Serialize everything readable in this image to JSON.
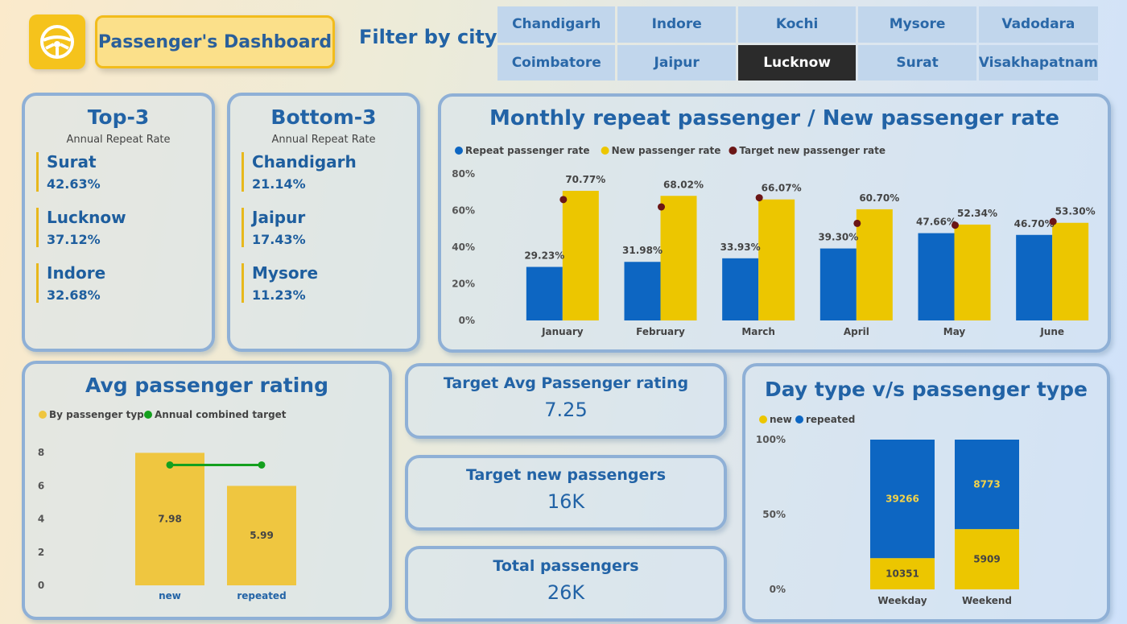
{
  "header": {
    "title": "Passenger's Dashboard",
    "filter_label": "Filter by city",
    "logo_icon": "steering-wheel-icon",
    "cities": [
      "Chandigarh",
      "Indore",
      "Kochi",
      "Mysore",
      "Vadodara",
      "Coimbatore",
      "Jaipur",
      "Lucknow",
      "Surat",
      "Visakhapatnam"
    ],
    "selected_city": "Lucknow"
  },
  "top3": {
    "title": "Top-3",
    "subtitle": "Annual Repeat Rate",
    "items": [
      {
        "city": "Surat",
        "value": "42.63%"
      },
      {
        "city": "Lucknow",
        "value": "37.12%"
      },
      {
        "city": "Indore",
        "value": "32.68%"
      }
    ]
  },
  "bottom3": {
    "title": "Bottom-3",
    "subtitle": "Annual Repeat Rate",
    "items": [
      {
        "city": "Chandigarh",
        "value": "21.14%"
      },
      {
        "city": "Jaipur",
        "value": "17.43%"
      },
      {
        "city": "Mysore",
        "value": "11.23%"
      }
    ]
  },
  "kpis": {
    "target_rating": {
      "label": "Target Avg Passenger rating",
      "value": "7.25"
    },
    "target_new": {
      "label": "Target new passengers",
      "value": "16K"
    },
    "total": {
      "label": "Total passengers",
      "value": "26K"
    }
  },
  "colors": {
    "blue": "#0d66c2",
    "yellow": "#ecc600",
    "target": "#6b1616",
    "green": "#14a01e",
    "rating_bar": "#efc640"
  },
  "chart_data": [
    {
      "type": "bar",
      "title": "Monthly repeat passenger / New passenger rate",
      "categories": [
        "January",
        "February",
        "March",
        "April",
        "May",
        "June"
      ],
      "series": [
        {
          "name": "Repeat passenger rate",
          "values": [
            29.23,
            31.98,
            33.93,
            39.3,
            47.66,
            46.7
          ],
          "labels": [
            "29.23%",
            "31.98%",
            "33.93%",
            "39.30%",
            "47.66%",
            "46.70%"
          ]
        },
        {
          "name": "New passenger rate",
          "values": [
            70.77,
            68.02,
            66.07,
            60.7,
            52.34,
            53.3
          ],
          "labels": [
            "70.77%",
            "68.02%",
            "66.07%",
            "60.70%",
            "52.34%",
            "53.30%"
          ]
        },
        {
          "name": "Target new passenger rate",
          "values": [
            66,
            62,
            67,
            53,
            52,
            54
          ]
        }
      ],
      "ylim": [
        0,
        80
      ],
      "yticks": [
        "0%",
        "20%",
        "40%",
        "60%",
        "80%"
      ],
      "legend": "top-left"
    },
    {
      "type": "bar",
      "title": "Avg passenger rating",
      "categories": [
        "new",
        "repeated"
      ],
      "series": [
        {
          "name": "By passenger type",
          "values": [
            7.98,
            5.99
          ],
          "labels": [
            "7.98",
            "5.99"
          ]
        },
        {
          "name": "Annual combined target",
          "values": [
            7.25,
            7.25
          ]
        }
      ],
      "ylim": [
        0,
        8
      ],
      "yticks": [
        "0",
        "2",
        "4",
        "6",
        "8"
      ],
      "legend": "top-left"
    },
    {
      "type": "bar",
      "title": "Day type v/s passenger type",
      "categories": [
        "Weekday",
        "Weekend"
      ],
      "series": [
        {
          "name": "new",
          "values": [
            10351,
            5909
          ],
          "labels": [
            "10351",
            "5909"
          ]
        },
        {
          "name": "repeated",
          "values": [
            39266,
            8773
          ],
          "labels": [
            "39266",
            "8773"
          ]
        }
      ],
      "stacked": "percent",
      "yticks": [
        "0%",
        "50%",
        "100%"
      ],
      "legend": "top-left"
    }
  ]
}
